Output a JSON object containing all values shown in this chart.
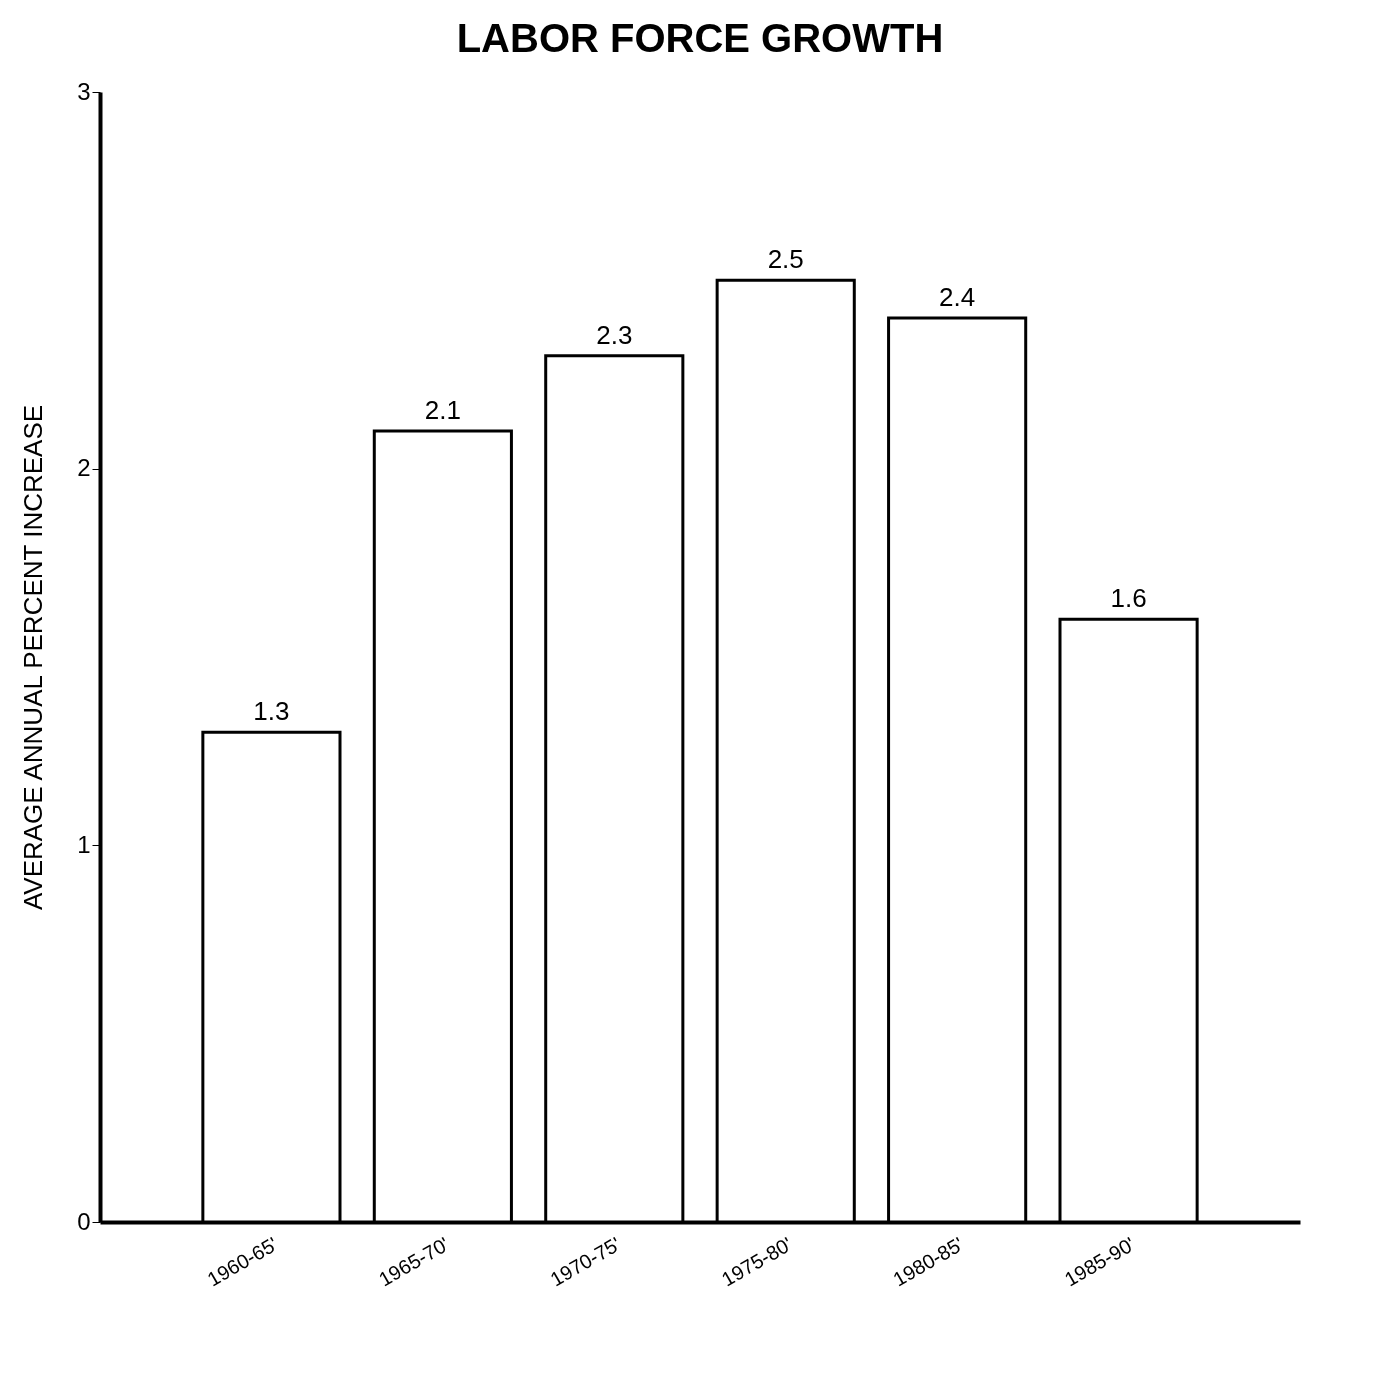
{
  "chart_data": {
    "type": "bar",
    "title": "LABOR FORCE GROWTH",
    "ylabel": "AVERAGE ANNUAL PERCENT INCREASE",
    "categories": [
      "1960-65'",
      "1965-70'",
      "1970-75'",
      "1975-80'",
      "1980-85'",
      "1985-90'"
    ],
    "values": [
      1.3,
      2.1,
      2.3,
      2.5,
      2.4,
      1.6
    ],
    "color": "#ffffff",
    "ylim": [
      0,
      3
    ],
    "yticks": [
      0,
      1,
      2,
      3
    ],
    "grid": false,
    "data_labels": true
  }
}
